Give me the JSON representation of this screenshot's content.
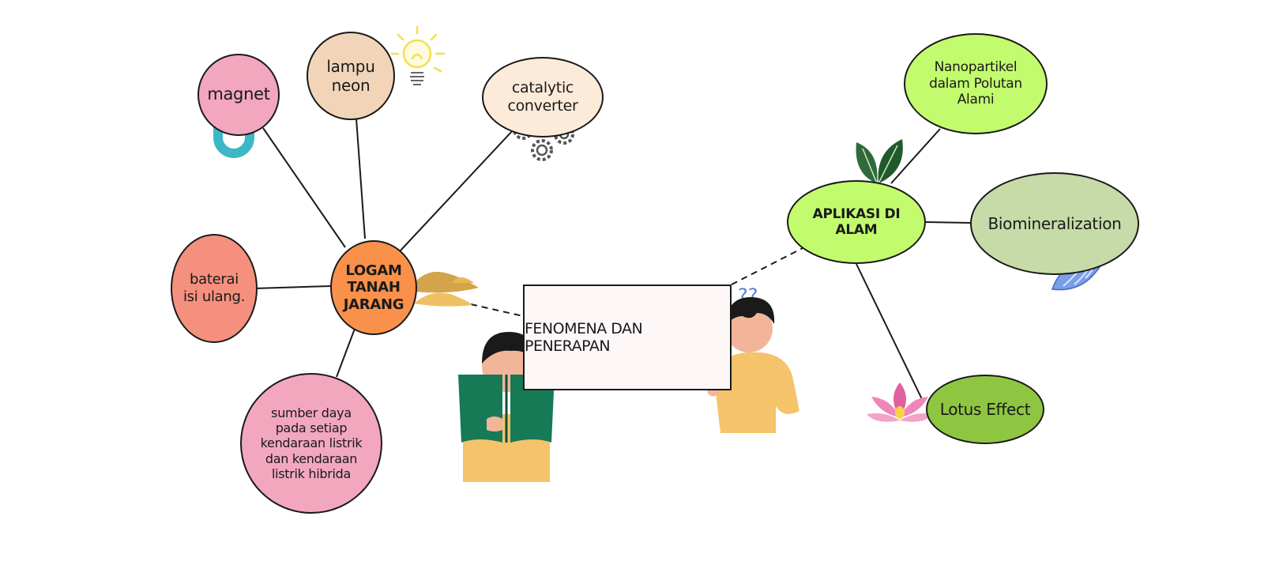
{
  "colors": {
    "hub_left": "#f9914b",
    "hub_right": "#c3fb6e",
    "pink": "#f2a7bf",
    "salmon": "#f6907e",
    "peach": "#f2d5b8",
    "cream": "#fdebd9",
    "lime": "#c3fb6e",
    "sage": "#c7dba8",
    "olive": "#8ec642",
    "center_box": "#fdf8f7"
  },
  "center": {
    "label": "FENOMENA DAN PENERAPAN"
  },
  "left_hub": {
    "label": [
      "LOGAM",
      "TANAH",
      "JARANG"
    ]
  },
  "left_nodes": {
    "magnet": "magnet",
    "lampu": [
      "lampu",
      "neon"
    ],
    "catalytic": [
      "catalytic",
      "converter"
    ],
    "baterai": [
      "baterai",
      "isi ulang."
    ],
    "sumber": [
      "sumber daya",
      "pada setiap",
      "kendaraan listrik",
      "dan kendaraan",
      "listrik hibrida"
    ]
  },
  "right_hub": {
    "label": [
      "APLIKASI DI",
      "ALAM"
    ]
  },
  "right_nodes": {
    "nanopartikel": [
      "Nanopartikel",
      "dalam Polutan",
      "Alami"
    ],
    "biomineralization": "Biomineralization",
    "lotus": "Lotus Effect"
  },
  "decorations": {
    "question_marks": "??",
    "icons": [
      "magnet-icon",
      "lightbulb-icon",
      "gears-icon",
      "leaves-icon",
      "shell-icon",
      "lotus-flower-icon",
      "sand-pile-icon",
      "reading-boy-illustration",
      "thinking-boy-illustration"
    ]
  }
}
